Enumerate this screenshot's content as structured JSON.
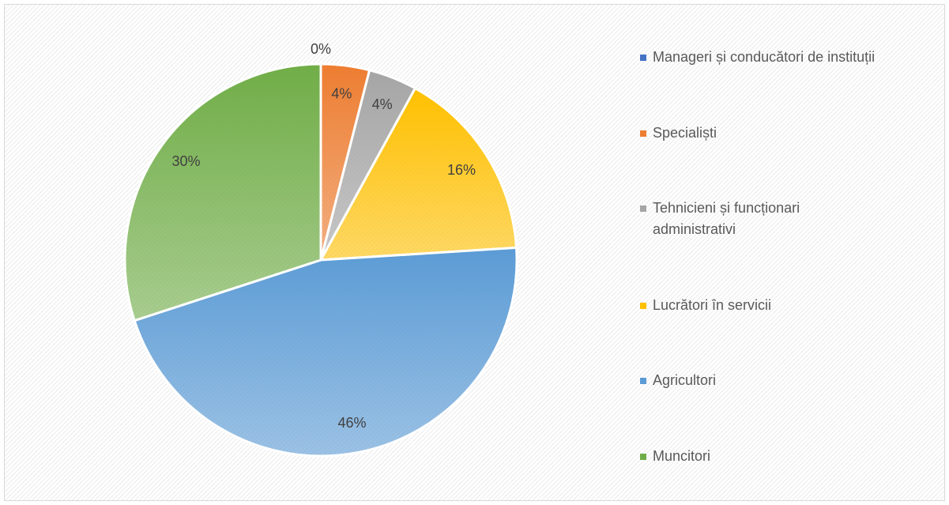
{
  "chart_data": {
    "type": "pie",
    "categories": [
      "Manageri și conducători de instituții",
      "Specialiști",
      "Tehnicieni și funcționari administrativi",
      "Lucrători în servicii",
      "Agricultori",
      "Muncitori"
    ],
    "values": [
      0,
      4,
      4,
      16,
      46,
      30
    ],
    "value_labels": [
      "0%",
      "4%",
      "4%",
      "16%",
      "46%",
      "30%"
    ],
    "colors": [
      "#4472c4",
      "#ed7d31",
      "#a5a5a5",
      "#ffc000",
      "#5b9bd5",
      "#70ad47"
    ],
    "legend": "right"
  }
}
